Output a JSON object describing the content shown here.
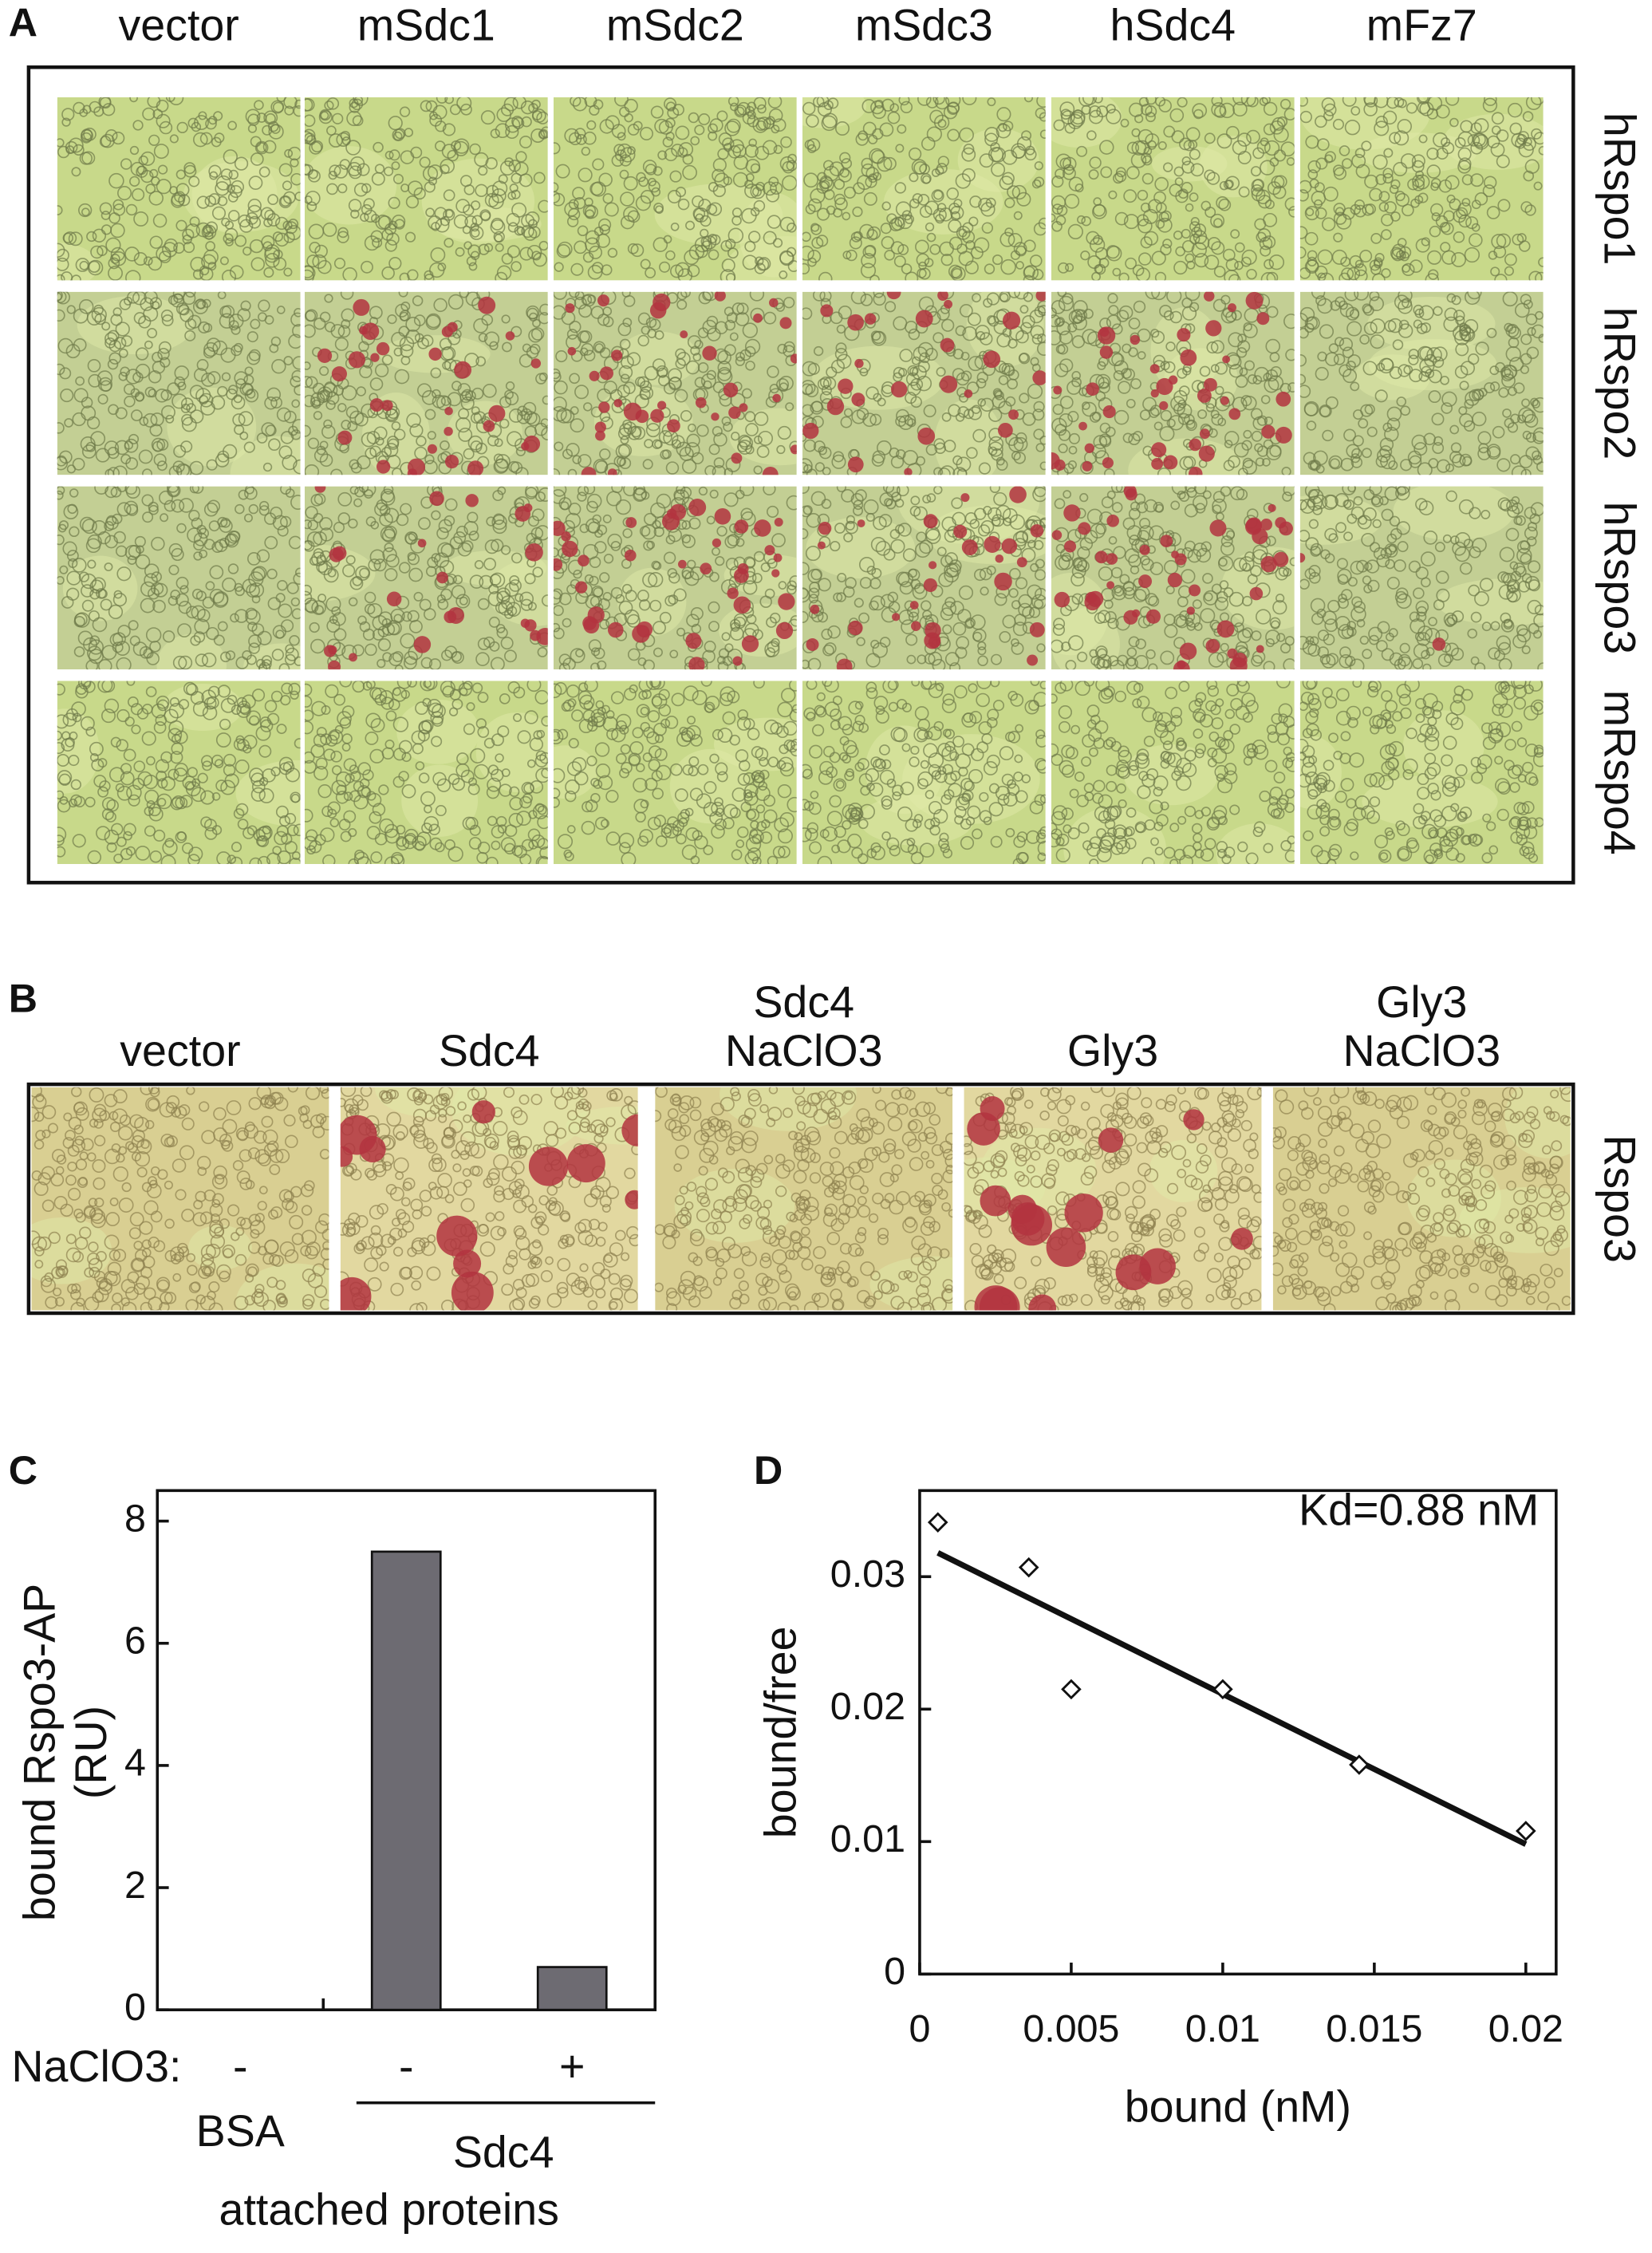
{
  "panels": {
    "a": {
      "label": "A",
      "columns": [
        "vector",
        "mSdc1",
        "mSdc2",
        "mSdc3",
        "hSdc4",
        "mFz7"
      ],
      "rows": [
        "hRspo1",
        "hRspo2",
        "hRspo3",
        "mRspo4"
      ]
    },
    "b": {
      "label": "B",
      "columns": [
        [
          "vector"
        ],
        [
          "Sdc4"
        ],
        [
          "Sdc4",
          "NaClO3"
        ],
        [
          "Gly3"
        ],
        [
          "Gly3",
          "NaClO3"
        ]
      ],
      "rows": [
        "Rspo3"
      ]
    }
  },
  "chart_data": [
    {
      "type": "bar",
      "panel_label": "C",
      "y_label": [
        "bound Rspo3-AP",
        "(RU)"
      ],
      "category_axis_label": "NaClO3:",
      "categories": [
        "-",
        "-",
        "+"
      ],
      "groups": [
        "BSA",
        "Sdc4"
      ],
      "x_label": "attached proteins",
      "values": [
        0,
        7.5,
        0.7
      ],
      "color": "#6d6b72",
      "ylim": [
        0,
        8.5
      ],
      "yticks": [
        0,
        2,
        4,
        6,
        8
      ]
    },
    {
      "type": "scatter",
      "panel_label": "D",
      "x_label": "bound (nM)",
      "y_label": "bound/free",
      "annotation": "Kd=0.88 nM",
      "x": [
        0.0006,
        0.0036,
        0.005,
        0.01,
        0.0145,
        0.02
      ],
      "values": [
        0.0341,
        0.0307,
        0.0215,
        0.0215,
        0.0158,
        0.0108
      ],
      "fit": {
        "x": [
          0.0006,
          0.02
        ],
        "values": [
          0.0318,
          0.0098
        ]
      },
      "xlim": [
        0,
        0.021
      ],
      "ylim": [
        0,
        0.0365
      ],
      "xticks": [
        0,
        0.005,
        0.01,
        0.015,
        0.02
      ],
      "yticks": [
        0,
        0.01,
        0.02,
        0.03
      ]
    }
  ]
}
